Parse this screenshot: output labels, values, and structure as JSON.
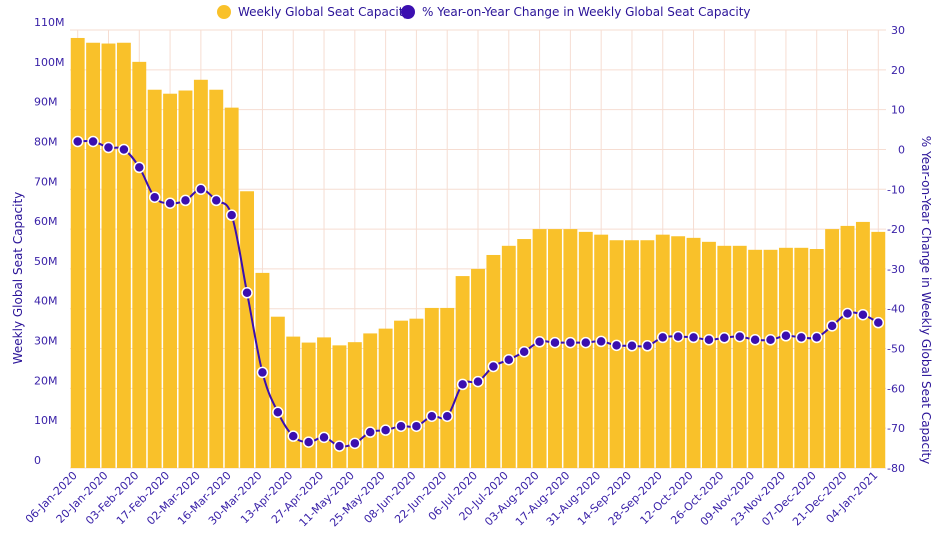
{
  "chart_data": {
    "type": "bar",
    "title": "",
    "legend_position": "top-center",
    "grid": true,
    "colors": {
      "bar": "#f9c12a",
      "line": "#3b0fb0",
      "text": "#3a22a8",
      "grid": "#f6ddd2"
    },
    "xlabel": "",
    "ylabel_left": "Weekly Global Seat Capacity",
    "ylabel_right": "% Year-on-Year Change in Weekly Global Seat Capacity",
    "ylim_left": [
      0,
      110000000
    ],
    "ylim_right": [
      -80,
      30
    ],
    "yticks_left": [
      {
        "value": 0,
        "label": "0"
      },
      {
        "value": 10000000,
        "label": "10M"
      },
      {
        "value": 20000000,
        "label": "20M"
      },
      {
        "value": 30000000,
        "label": "30M"
      },
      {
        "value": 40000000,
        "label": "40M"
      },
      {
        "value": 50000000,
        "label": "50M"
      },
      {
        "value": 60000000,
        "label": "60M"
      },
      {
        "value": 70000000,
        "label": "70M"
      },
      {
        "value": 80000000,
        "label": "80M"
      },
      {
        "value": 90000000,
        "label": "90M"
      },
      {
        "value": 100000000,
        "label": "100M"
      },
      {
        "value": 110000000,
        "label": "110M"
      }
    ],
    "yticks_right": [
      {
        "value": -80,
        "label": "-80"
      },
      {
        "value": -70,
        "label": "-70"
      },
      {
        "value": -60,
        "label": "-60"
      },
      {
        "value": -50,
        "label": "-50"
      },
      {
        "value": -40,
        "label": "-40"
      },
      {
        "value": -30,
        "label": "-30"
      },
      {
        "value": -20,
        "label": "-20"
      },
      {
        "value": -10,
        "label": "-10"
      },
      {
        "value": 0,
        "label": "0"
      },
      {
        "value": 10,
        "label": "10"
      },
      {
        "value": 20,
        "label": "20"
      },
      {
        "value": 30,
        "label": "30"
      }
    ],
    "categories": [
      "06-Jan-2020",
      "13-Jan-2020",
      "20-Jan-2020",
      "27-Jan-2020",
      "03-Feb-2020",
      "10-Feb-2020",
      "17-Feb-2020",
      "24-Feb-2020",
      "02-Mar-2020",
      "09-Mar-2020",
      "16-Mar-2020",
      "23-Mar-2020",
      "30-Mar-2020",
      "06-Apr-2020",
      "13-Apr-2020",
      "20-Apr-2020",
      "27-Apr-2020",
      "04-May-2020",
      "11-May-2020",
      "18-May-2020",
      "25-May-2020",
      "01-Jun-2020",
      "08-Jun-2020",
      "15-Jun-2020",
      "22-Jun-2020",
      "29-Jun-2020",
      "06-Jul-2020",
      "13-Jul-2020",
      "20-Jul-2020",
      "27-Jul-2020",
      "03-Aug-2020",
      "10-Aug-2020",
      "17-Aug-2020",
      "24-Aug-2020",
      "31-Aug-2020",
      "07-Sep-2020",
      "14-Sep-2020",
      "21-Sep-2020",
      "28-Sep-2020",
      "05-Oct-2020",
      "12-Oct-2020",
      "19-Oct-2020",
      "26-Oct-2020",
      "02-Nov-2020",
      "09-Nov-2020",
      "16-Nov-2020",
      "23-Nov-2020",
      "30-Nov-2020",
      "07-Dec-2020",
      "14-Dec-2020",
      "21-Dec-2020",
      "28-Dec-2020",
      "04-Jan-2021"
    ],
    "x_tick_labels": [
      "06-Jan-2020",
      "20-Jan-2020",
      "03-Feb-2020",
      "17-Feb-2020",
      "02-Mar-2020",
      "16-Mar-2020",
      "30-Mar-2020",
      "13-Apr-2020",
      "27-Apr-2020",
      "11-May-2020",
      "25-May-2020",
      "08-Jun-2020",
      "22-Jun-2020",
      "06-Jul-2020",
      "20-Jul-2020",
      "03-Aug-2020",
      "17-Aug-2020",
      "31-Aug-2020",
      "14-Sep-2020",
      "28-Sep-2020",
      "12-Oct-2020",
      "26-Oct-2020",
      "09-Nov-2020",
      "23-Nov-2020",
      "07-Dec-2020",
      "21-Dec-2020",
      "04-Jan-2021"
    ],
    "series": [
      {
        "name": "Weekly Global Seat Capacity",
        "type": "bar",
        "axis": "left",
        "values": [
          108000000,
          106800000,
          106600000,
          106800000,
          102000000,
          95000000,
          94000000,
          94800000,
          97500000,
          95000000,
          90500000,
          69500000,
          49000000,
          38000000,
          33000000,
          31500000,
          32800000,
          30800000,
          31600000,
          33800000,
          35000000,
          37000000,
          37500000,
          40200000,
          40200000,
          48200000,
          50000000,
          53500000,
          55800000,
          57500000,
          60000000,
          60000000,
          60000000,
          59300000,
          58600000,
          57200000,
          57200000,
          57200000,
          58600000,
          58200000,
          57800000,
          56800000,
          55800000,
          55800000,
          54800000,
          54800000,
          55300000,
          55300000,
          55000000,
          60000000,
          60800000,
          61800000,
          59300000
        ]
      },
      {
        "name": "% Year-on-Year Change in Weekly Global Seat Capacity",
        "type": "line",
        "axis": "right",
        "values": [
          2,
          2,
          0.5,
          0,
          -4.5,
          -12,
          -13.5,
          -12.8,
          -10,
          -12.8,
          -16.5,
          -36,
          -56,
          -66,
          -72,
          -73.5,
          -72.3,
          -74.5,
          -73.8,
          -71,
          -70.5,
          -69.5,
          -69.5,
          -67,
          -67,
          -59,
          -58.3,
          -54.5,
          -52.8,
          -50.8,
          -48.3,
          -48.5,
          -48.5,
          -48.5,
          -48.2,
          -49.2,
          -49.3,
          -49.3,
          -47.2,
          -47,
          -47.2,
          -47.8,
          -47.3,
          -47,
          -47.8,
          -47.8,
          -46.8,
          -47.2,
          -47.2,
          -44.3,
          -41.2,
          -41.5,
          -43.5
        ]
      }
    ]
  }
}
